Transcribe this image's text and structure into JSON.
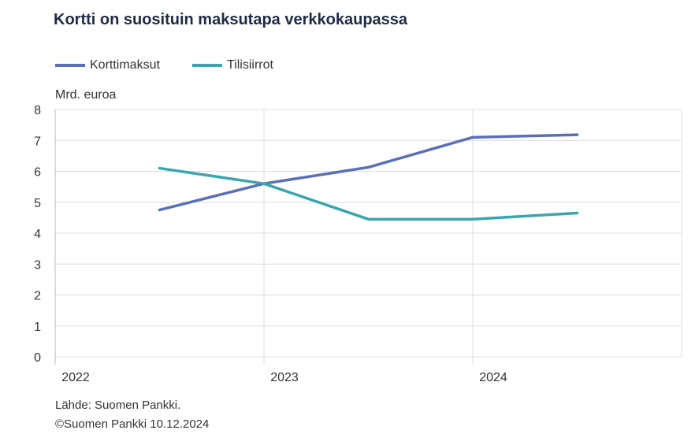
{
  "chart_data": {
    "type": "line",
    "title": "Kortti on suosituin maksutapa verkkokaupassa",
    "ylabel": "Mrd. euroa",
    "xlabel": "",
    "ylim": [
      0,
      8
    ],
    "xlim": [
      2022,
      2025
    ],
    "yticks": [
      0,
      1,
      2,
      3,
      4,
      5,
      6,
      7,
      8
    ],
    "xticks": [
      "2022",
      "2023",
      "2024"
    ],
    "grid": true,
    "legend_position": "top-left",
    "x": [
      2022.5,
      2023.0,
      2023.5,
      2024.0,
      2024.5
    ],
    "series": [
      {
        "name": "Korttimaksut",
        "color": "#5b6fb5",
        "values": [
          4.75,
          5.6,
          6.13,
          7.1,
          7.18
        ]
      },
      {
        "name": "Tilisiirrot",
        "color": "#3aa5ad",
        "values": [
          6.1,
          5.6,
          4.45,
          4.45,
          4.65
        ]
      }
    ]
  },
  "source": [
    "Lähde: Suomen Pankki.",
    "©Suomen Pankki 10.12.2024"
  ]
}
